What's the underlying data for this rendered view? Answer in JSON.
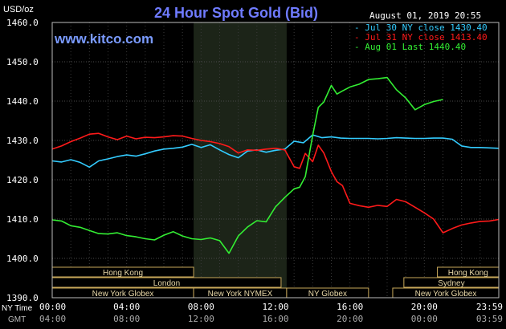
{
  "chart_data": {
    "type": "line",
    "title": "24 Hour Spot Gold (Bid)",
    "watermark": "www.kitco.com",
    "timestamp": "August 01, 2019 20:55",
    "ylabel": "USD/oz",
    "ylim": [
      1390,
      1460
    ],
    "yticks": [
      "1460.0",
      "1450.0",
      "1440.0",
      "1430.0",
      "1420.0",
      "1410.0",
      "1400.0",
      "1390.0"
    ],
    "ytick_values": [
      1460,
      1450,
      1440,
      1430,
      1420,
      1410,
      1400,
      1390
    ],
    "xlim": [
      0,
      24
    ],
    "xticks_ny": [
      "00:00",
      "04:00",
      "08:00",
      "12:00",
      "16:00",
      "20:00",
      "23:59"
    ],
    "xticks_gmt": [
      "04:00",
      "08:00",
      "12:00",
      "16:00",
      "20:00",
      "00:00",
      "03:59"
    ],
    "xtick_positions": [
      0,
      4,
      8,
      12,
      16,
      20,
      23.983
    ],
    "xlabel_ny": "NY Time",
    "xlabel_gmt": "GMT",
    "shaded_session": [
      7.6,
      12.6
    ],
    "series": [
      {
        "name": "Jul 30 NY close 1430.40",
        "color": "#33ccff",
        "x": [
          0,
          0.5,
          1,
          1.5,
          2,
          2.5,
          3,
          3.5,
          4,
          4.5,
          5,
          5.5,
          6,
          6.5,
          7,
          7.5,
          8,
          8.5,
          9,
          9.5,
          10,
          10.5,
          11,
          11.5,
          12,
          12.5,
          13,
          13.5,
          14,
          14.5,
          15,
          15.5,
          16,
          16.5,
          17,
          17.5,
          18,
          18.5,
          19,
          19.5,
          20,
          20.5,
          21,
          21.5,
          22,
          22.5,
          23,
          23.5,
          24
        ],
        "values": [
          1424.8,
          1424.5,
          1425.1,
          1424.4,
          1423.2,
          1424.8,
          1425.3,
          1425.9,
          1426.3,
          1426.0,
          1426.6,
          1427.3,
          1427.8,
          1428.0,
          1428.3,
          1429.0,
          1428.2,
          1428.9,
          1427.6,
          1426.4,
          1425.6,
          1427.3,
          1427.6,
          1427.0,
          1427.5,
          1427.8,
          1429.8,
          1429.4,
          1431.4,
          1430.7,
          1430.9,
          1430.6,
          1430.5,
          1430.5,
          1430.5,
          1430.4,
          1430.5,
          1430.7,
          1430.6,
          1430.5,
          1430.5,
          1430.6,
          1430.6,
          1430.3,
          1428.6,
          1428.2,
          1428.2,
          1428.1,
          1428.0
        ]
      },
      {
        "name": "Jul 31 NY close 1413.40",
        "color": "#ff1a1a",
        "x": [
          0,
          0.5,
          1,
          1.5,
          2,
          2.5,
          3,
          3.5,
          4,
          4.5,
          5,
          5.5,
          6,
          6.5,
          7,
          7.5,
          8,
          8.5,
          9,
          9.5,
          10,
          10.5,
          11,
          11.5,
          12,
          12.5,
          13,
          13.3,
          13.6,
          14,
          14.3,
          14.6,
          15,
          15.3,
          15.6,
          16,
          16.5,
          17,
          17.5,
          18,
          18.5,
          19,
          19.5,
          20,
          20.5,
          21,
          21.5,
          22,
          22.5,
          23,
          23.5,
          24
        ],
        "values": [
          1427.8,
          1428.6,
          1429.7,
          1430.6,
          1431.6,
          1431.8,
          1430.9,
          1430.2,
          1431.1,
          1430.4,
          1430.8,
          1430.7,
          1430.9,
          1431.2,
          1431.1,
          1430.5,
          1430.0,
          1429.7,
          1429.2,
          1428.4,
          1426.8,
          1427.6,
          1427.5,
          1427.8,
          1428.0,
          1427.6,
          1423.3,
          1422.9,
          1426.7,
          1424.6,
          1428.8,
          1426.8,
          1422.1,
          1419.5,
          1418.5,
          1414.0,
          1413.4,
          1413.0,
          1413.5,
          1413.2,
          1415.0,
          1414.4,
          1413.0,
          1411.6,
          1410.0,
          1406.5,
          1407.6,
          1408.5,
          1409.0,
          1409.4,
          1409.5,
          1409.9
        ]
      },
      {
        "name": "Aug 01 Last 1440.40",
        "color": "#33ee33",
        "x": [
          0,
          0.5,
          1,
          1.5,
          2,
          2.5,
          3,
          3.5,
          4,
          4.5,
          5,
          5.5,
          6,
          6.5,
          7,
          7.5,
          8,
          8.5,
          9,
          9.5,
          10,
          10.5,
          11,
          11.5,
          12,
          12.5,
          13,
          13.3,
          13.6,
          14,
          14.3,
          14.6,
          15,
          15.3,
          15.6,
          16,
          16.5,
          17,
          17.5,
          18,
          18.5,
          19,
          19.5,
          20,
          20.5,
          21
        ],
        "values": [
          1409.8,
          1409.5,
          1408.3,
          1407.9,
          1407.1,
          1406.3,
          1406.2,
          1406.5,
          1405.8,
          1405.5,
          1405.0,
          1404.7,
          1405.9,
          1406.8,
          1405.7,
          1405.0,
          1404.8,
          1405.2,
          1404.5,
          1401.3,
          1405.7,
          1408.0,
          1409.6,
          1409.3,
          1413.1,
          1415.5,
          1417.7,
          1418.1,
          1420.8,
          1431.3,
          1438.4,
          1439.8,
          1444.0,
          1441.8,
          1442.6,
          1443.6,
          1444.3,
          1445.5,
          1445.7,
          1446.0,
          1442.9,
          1440.8,
          1437.8,
          1439.1,
          1439.9,
          1440.4
        ]
      }
    ],
    "sessions": [
      {
        "label": "Hong Kong",
        "start": 0,
        "end": 7.6,
        "row": 0
      },
      {
        "label": "London",
        "start": 0,
        "end": 12.3,
        "row": 1
      },
      {
        "label": "New York Globex",
        "start": 0,
        "end": 7.6,
        "row": 2
      },
      {
        "label": "New York NYMEX",
        "start": 7.6,
        "end": 12.6,
        "row": 2
      },
      {
        "label": "NY Globex",
        "start": 12.6,
        "end": 17.0,
        "row": 2
      },
      {
        "label": "Hong Kong",
        "start": 20.7,
        "end": 24,
        "row": 0
      },
      {
        "label": "Sydney",
        "start": 18.9,
        "end": 24,
        "row": 1
      },
      {
        "label": "New York Globex",
        "start": 18.3,
        "end": 24,
        "row": 2
      }
    ],
    "grid": true,
    "legend": "top-right"
  }
}
